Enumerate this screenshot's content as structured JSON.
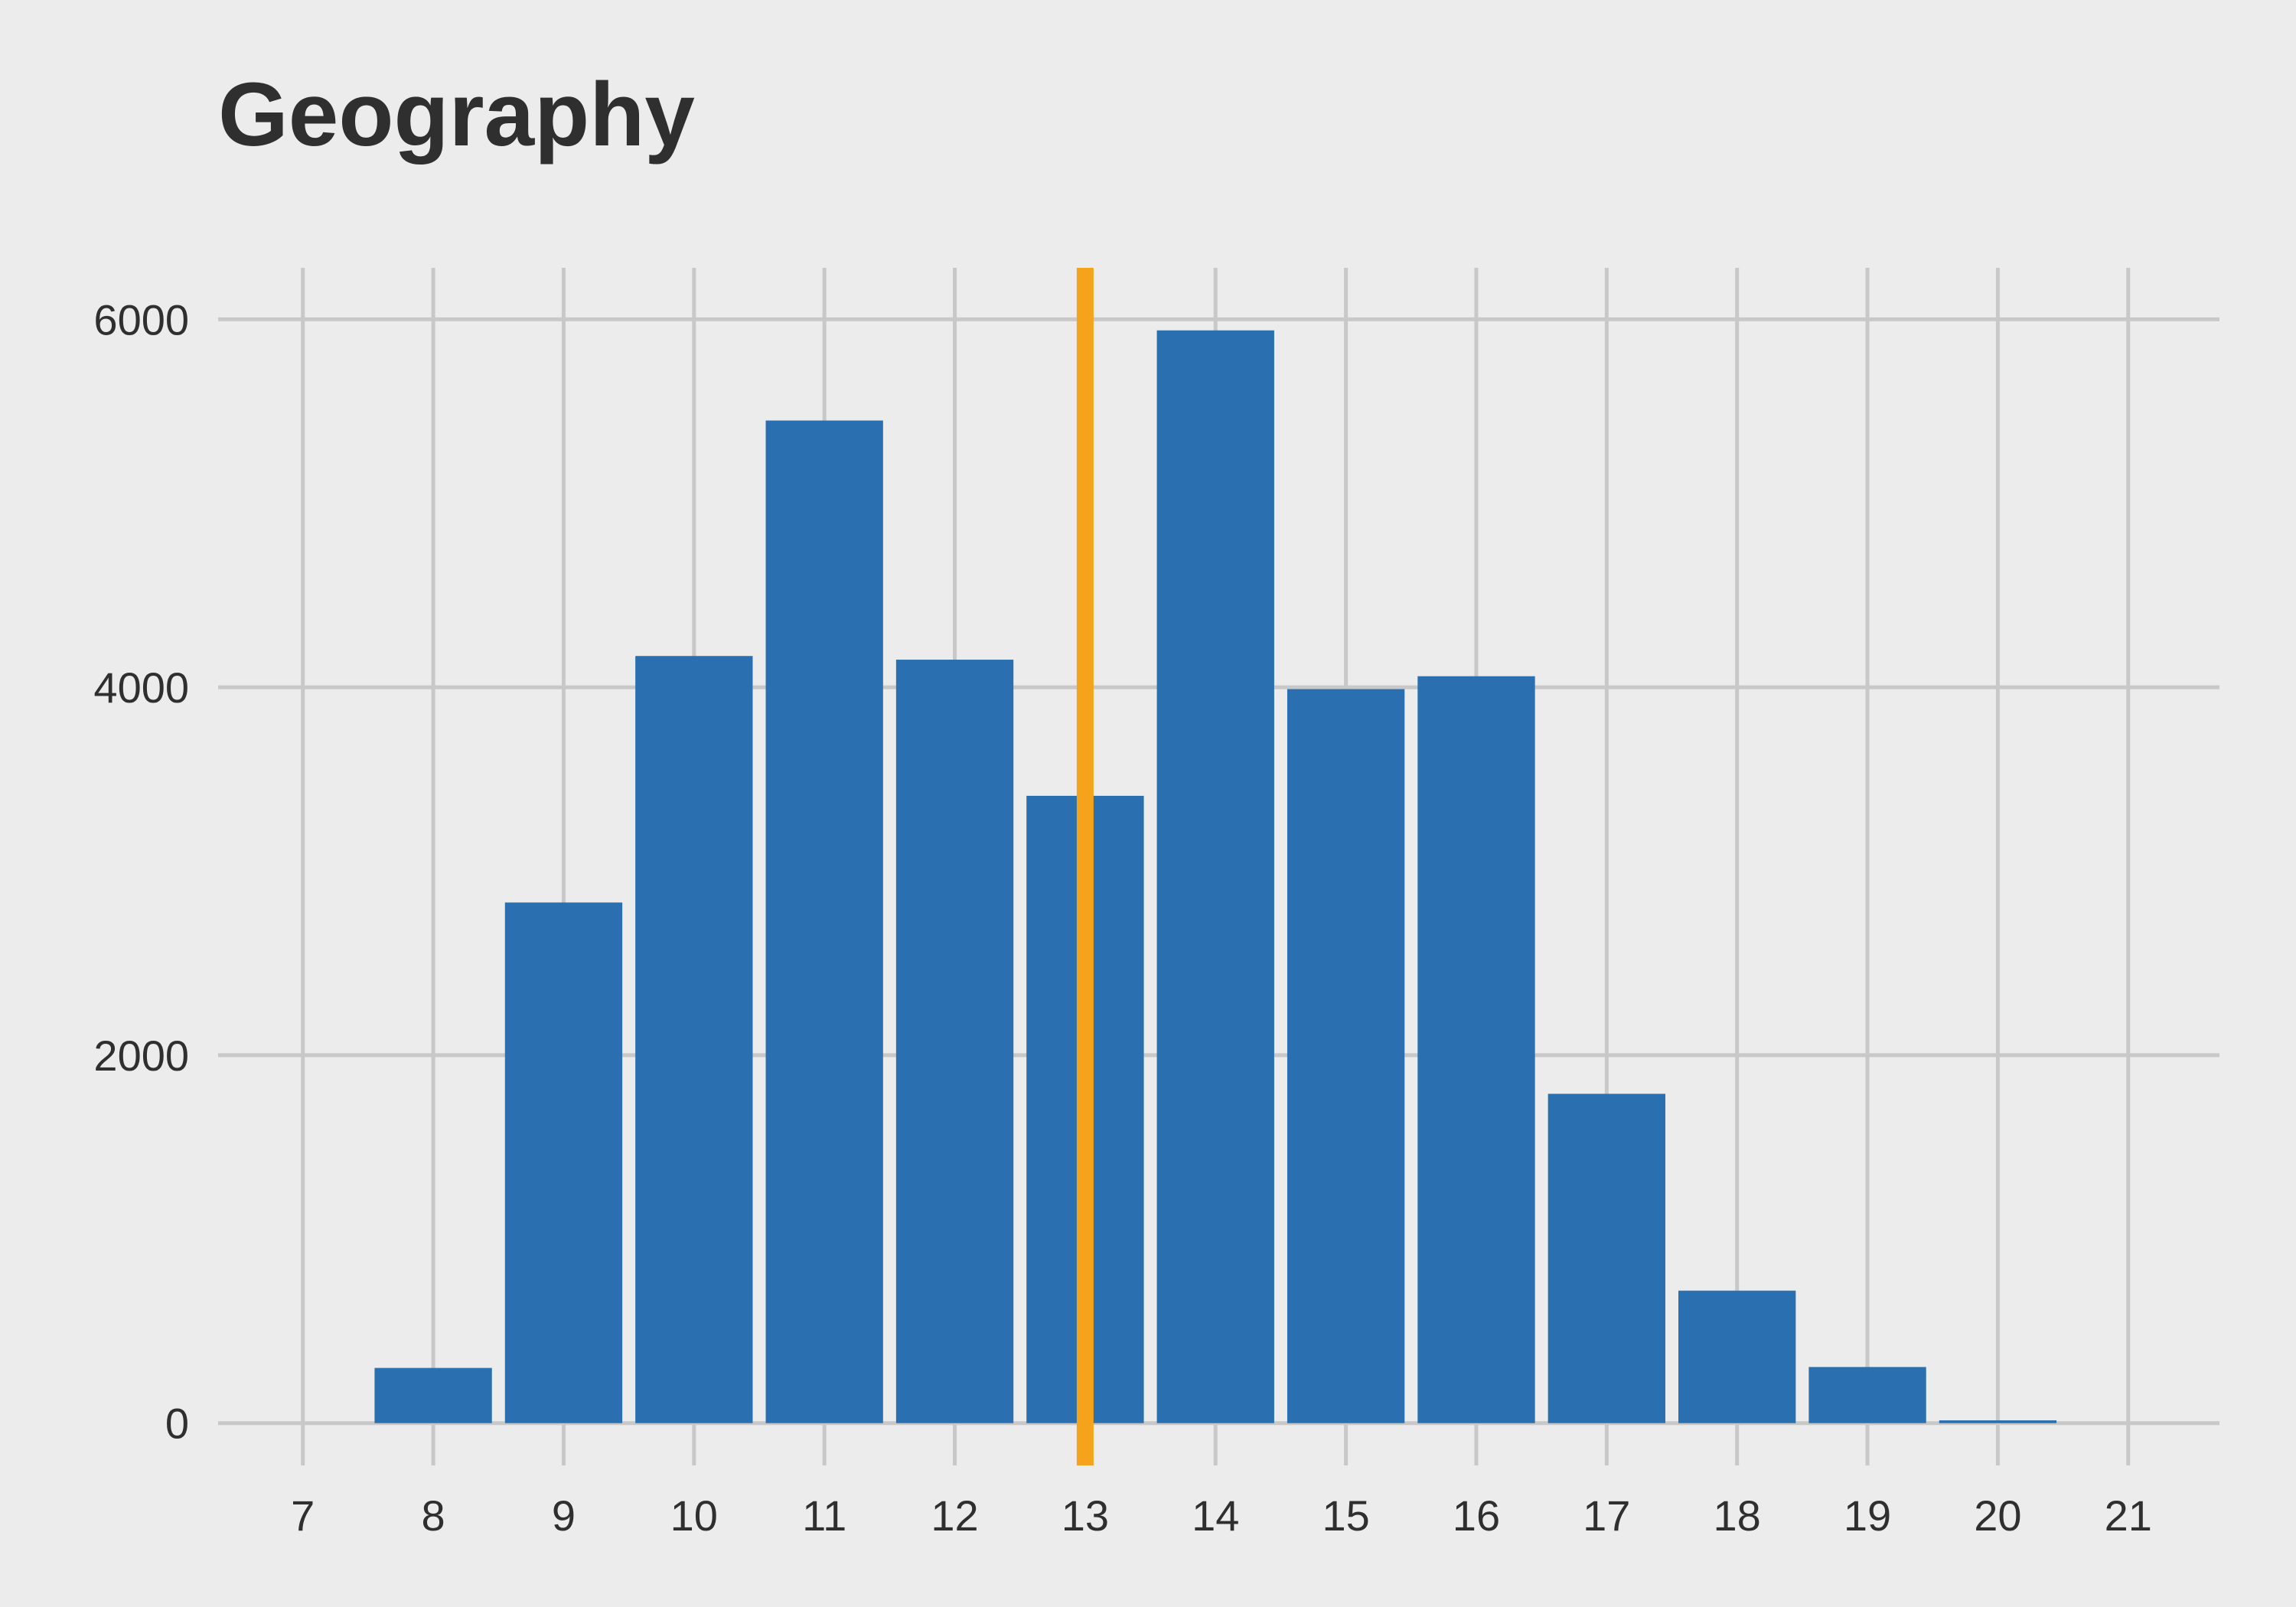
{
  "chart_data": {
    "type": "bar",
    "title": "Geography",
    "xlabel": "",
    "ylabel": "",
    "categories": [
      8,
      9,
      10,
      11,
      12,
      13,
      14,
      15,
      16,
      17,
      18,
      19,
      20
    ],
    "values": [
      300,
      2830,
      4170,
      5450,
      4150,
      3410,
      5940,
      3990,
      4060,
      1790,
      720,
      305,
      15
    ],
    "x_ticks": [
      "7",
      "8",
      "9",
      "10",
      "11",
      "12",
      "13",
      "14",
      "15",
      "16",
      "17",
      "18",
      "19",
      "20",
      "21"
    ],
    "y_ticks": [
      "0",
      "2000",
      "4000",
      "6000"
    ],
    "xlim": [
      6.35,
      21.7
    ],
    "ylim": [
      -230,
      6280
    ],
    "reference_line": {
      "x": 13.0,
      "color": "#f5a31a"
    },
    "bar_color": "#2a6fb0",
    "grid": true,
    "legend": "none"
  }
}
